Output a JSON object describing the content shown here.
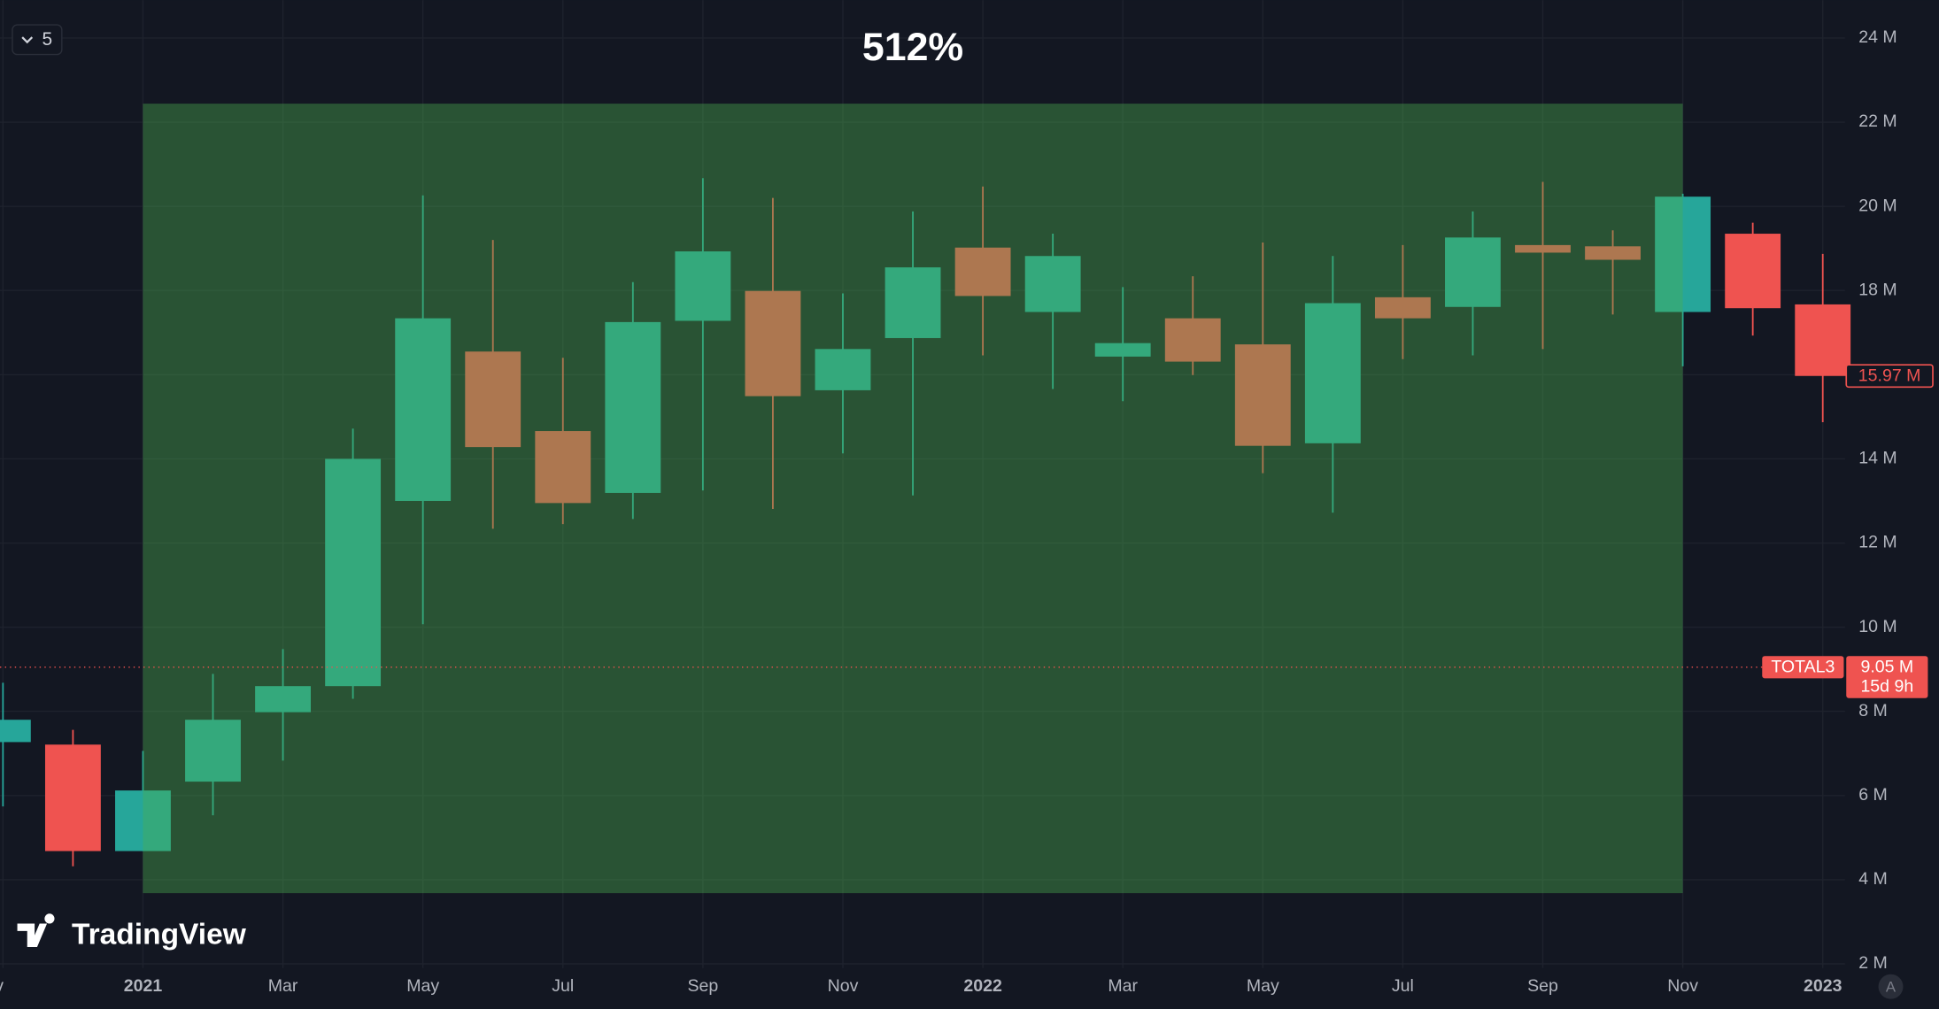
{
  "chart_data": {
    "type": "candlestick",
    "interval": "5",
    "logo": "TradingView",
    "auto_scale_button": "A",
    "categories": [
      "Nov",
      null,
      "2021",
      null,
      "Mar",
      null,
      "May",
      null,
      "Jul",
      null,
      "Sep",
      null,
      "Nov",
      null,
      "2022",
      null,
      "Mar",
      null,
      "May",
      null,
      "Jul",
      null,
      "Sep",
      null,
      "Nov",
      null,
      "2023"
    ],
    "open": [
      7.27,
      7.21,
      4.68,
      6.33,
      7.98,
      8.6,
      13.0,
      16.55,
      14.66,
      13.19,
      17.28,
      17.99,
      15.63,
      16.87,
      19.02,
      17.49,
      16.43,
      17.34,
      16.72,
      14.37,
      17.84,
      17.61,
      19.08,
      19.05,
      17.49,
      19.35,
      17.67
    ],
    "high": [
      8.68,
      7.56,
      7.06,
      8.89,
      9.48,
      14.72,
      20.26,
      19.2,
      16.4,
      18.2,
      20.67,
      20.2,
      17.93,
      19.88,
      20.47,
      19.35,
      18.08,
      18.34,
      19.14,
      18.82,
      19.08,
      19.88,
      20.58,
      19.43,
      20.3,
      19.61,
      18.87
    ],
    "low": [
      5.74,
      4.32,
      4.68,
      5.53,
      6.83,
      8.3,
      10.07,
      12.34,
      12.45,
      12.57,
      13.25,
      12.81,
      14.13,
      13.13,
      16.46,
      15.66,
      15.37,
      15.99,
      13.66,
      12.72,
      16.37,
      16.46,
      16.61,
      17.43,
      16.2,
      16.93,
      14.87
    ],
    "close": [
      7.8,
      4.68,
      6.12,
      7.8,
      8.6,
      14.0,
      17.34,
      14.28,
      12.95,
      17.25,
      18.93,
      15.49,
      16.61,
      18.55,
      17.87,
      18.82,
      16.75,
      16.31,
      14.31,
      17.7,
      17.34,
      19.26,
      18.9,
      18.73,
      20.23,
      17.58,
      15.97
    ],
    "up_color": "#26a69a",
    "down_color": "#ef5350",
    "ylim": [
      1.9,
      24.9
    ],
    "yticks": [
      {
        "value": 2,
        "label": "2 M"
      },
      {
        "value": 4,
        "label": "4 M"
      },
      {
        "value": 6,
        "label": "6 M"
      },
      {
        "value": 8,
        "label": "8 M"
      },
      {
        "value": 10,
        "label": "10 M"
      },
      {
        "value": 12,
        "label": "12 M"
      },
      {
        "value": 14,
        "label": "14 M"
      },
      {
        "value": 16,
        "label": "16 M"
      },
      {
        "value": 18,
        "label": "18 M"
      },
      {
        "value": 20,
        "label": "20 M"
      },
      {
        "value": 22,
        "label": "22 M"
      },
      {
        "value": 24,
        "label": "24 M"
      }
    ],
    "grid": true,
    "range": {
      "label": "512%",
      "low": 3.68,
      "high": 22.44,
      "color": "#4caf50"
    },
    "last_price": {
      "value": 15.97,
      "label": "15.97 M"
    },
    "current": {
      "symbol": "TOTAL3",
      "value": 9.05,
      "label": "9.05 M",
      "countdown": "15d 9h"
    }
  }
}
